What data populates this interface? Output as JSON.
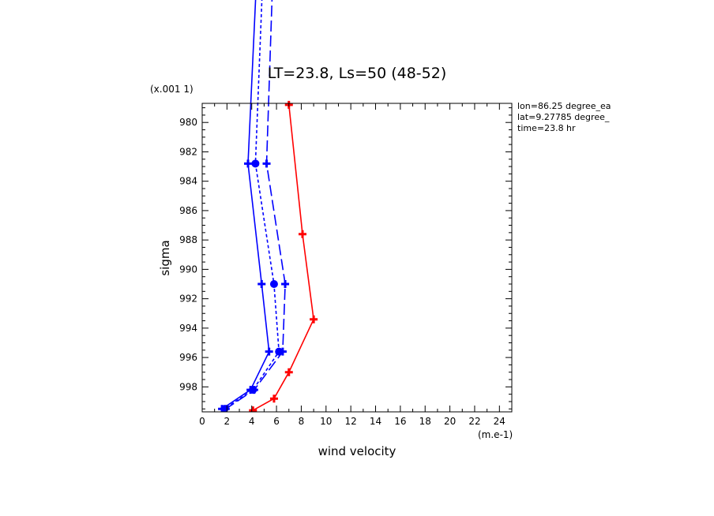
{
  "chart_data": {
    "type": "line",
    "title": "LT=23.8, Ls=50 (48-52)",
    "xlabel": "wind velocity",
    "ylabel": "sigma",
    "x_unit_label": "(m.e-1)",
    "y_unit_label": "(x.001 1)",
    "xlim": [
      0,
      25
    ],
    "ylim": [
      999.7,
      978.7
    ],
    "x_ticks": [
      "0",
      "2",
      "4",
      "6",
      "8",
      "10",
      "12",
      "14",
      "16",
      "18",
      "20",
      "22",
      "24"
    ],
    "y_ticks": [
      "980",
      "982",
      "984",
      "986",
      "988",
      "990",
      "992",
      "994",
      "996",
      "998"
    ],
    "info_lines": [
      "lon=86.25 degree_ea",
      "lat=9.27785 degree_",
      "time=23.8 hr"
    ],
    "series": [
      {
        "color": "#ff0000",
        "style": "solid",
        "marker": "plus",
        "points": [
          [
            7.0,
            978.8
          ],
          [
            8.1,
            987.6
          ],
          [
            9.0,
            993.4
          ],
          [
            7.0,
            997.0
          ],
          [
            5.8,
            998.8
          ],
          [
            4.1,
            999.6
          ]
        ]
      },
      {
        "color": "#0000ff",
        "style": "solid",
        "marker": "plus",
        "points": [
          [
            4.4,
            970.0
          ],
          [
            3.7,
            982.8
          ],
          [
            4.8,
            991.0
          ],
          [
            5.4,
            995.6
          ],
          [
            3.9,
            998.2
          ],
          [
            1.6,
            999.5
          ]
        ]
      },
      {
        "color": "#0000ff",
        "style": "dotted",
        "marker": "dot",
        "points": [
          [
            4.9,
            970.0
          ],
          [
            4.3,
            982.8
          ],
          [
            5.8,
            991.0
          ],
          [
            6.2,
            995.6
          ],
          [
            4.1,
            998.2
          ],
          [
            1.8,
            999.5
          ]
        ]
      },
      {
        "color": "#0000ff",
        "style": "dashed",
        "marker": "plus",
        "points": [
          [
            5.7,
            970.0
          ],
          [
            5.2,
            982.8
          ],
          [
            6.7,
            991.0
          ],
          [
            6.5,
            995.6
          ],
          [
            4.2,
            998.2
          ],
          [
            1.9,
            999.5
          ]
        ]
      }
    ]
  }
}
